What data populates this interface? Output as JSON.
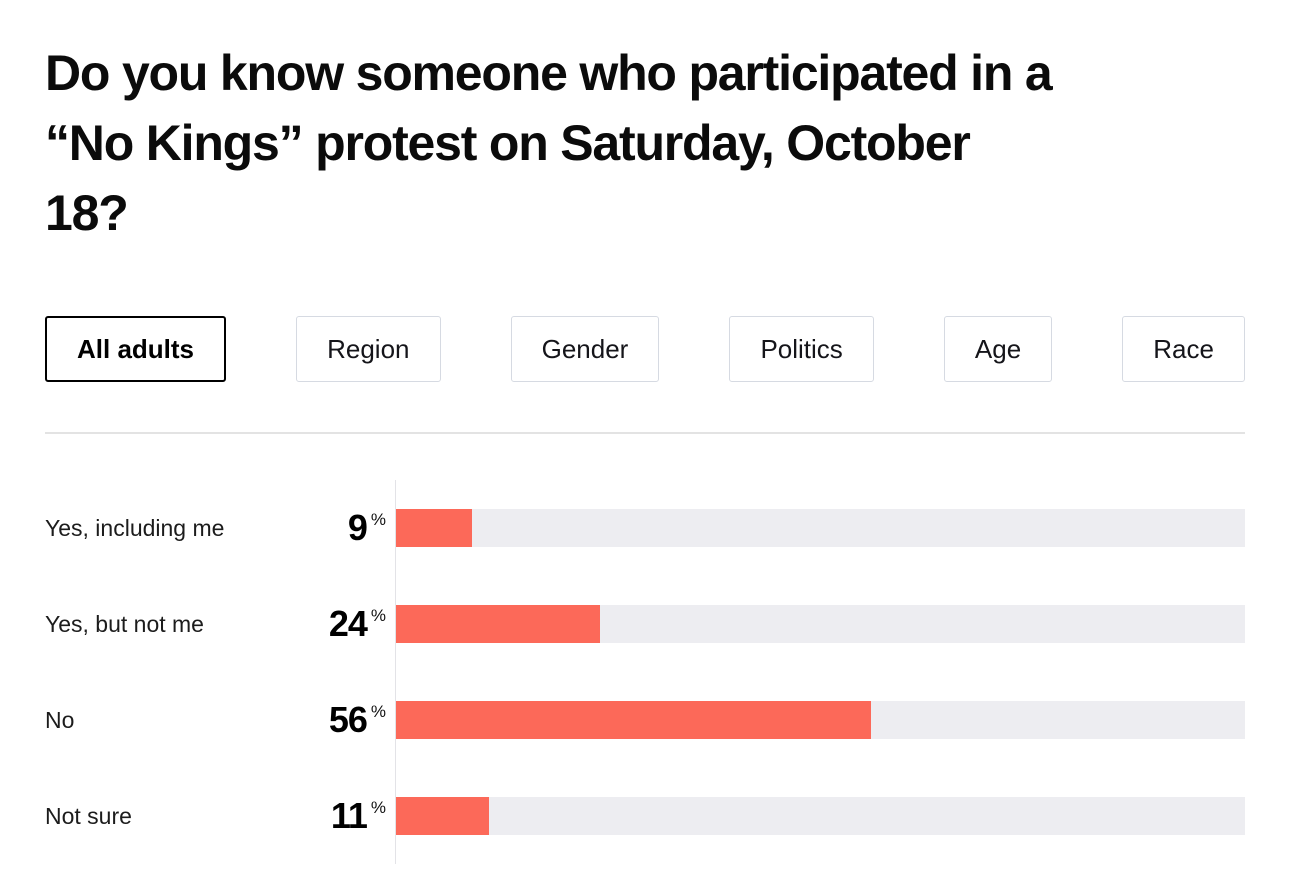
{
  "title": "Do you know someone who participated in a\n“No Kings” protest on Saturday, October\n18?",
  "tabs": [
    {
      "label": "All adults",
      "selected": true
    },
    {
      "label": "Region",
      "selected": false
    },
    {
      "label": "Gender",
      "selected": false
    },
    {
      "label": "Politics",
      "selected": false
    },
    {
      "label": "Age",
      "selected": false
    },
    {
      "label": "Race",
      "selected": false
    }
  ],
  "chart_data": {
    "type": "bar",
    "orientation": "horizontal",
    "title": "Do you know someone who participated in a “No Kings” protest on Saturday, October 18?",
    "categories": [
      "Yes, including me",
      "Yes, but not me",
      "No",
      "Not sure"
    ],
    "values": [
      9,
      24,
      56,
      11
    ],
    "unit": "%",
    "xlim": [
      0,
      100
    ],
    "grid": false,
    "legend": "none",
    "colors": {
      "bar": "#fc6959",
      "track": "#ededf1",
      "axis": "#e3e3e7",
      "text": "#0b0b0b"
    }
  }
}
